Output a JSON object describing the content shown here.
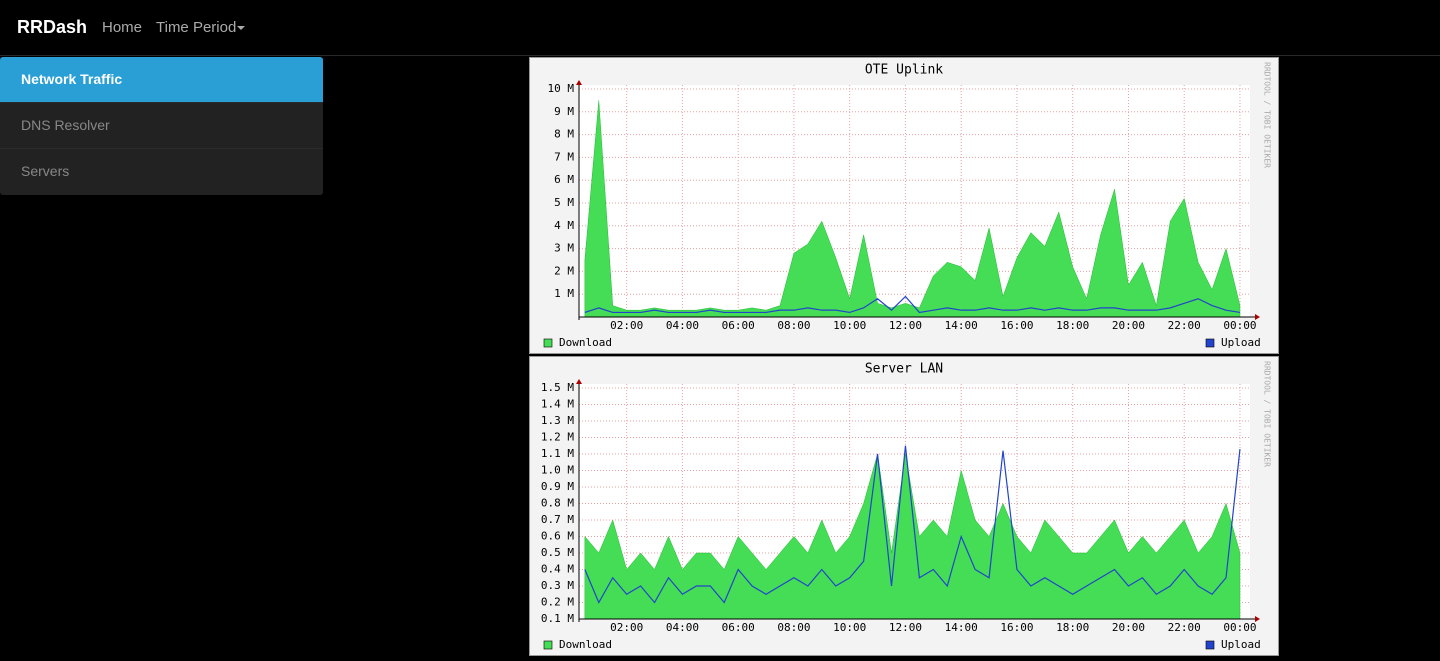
{
  "navbar": {
    "brand": "RRDash",
    "links": [
      "Home",
      "Time Period"
    ]
  },
  "sidebar": {
    "items": [
      "Network Traffic",
      "DNS Resolver",
      "Servers"
    ],
    "active": 0
  },
  "chart_data": [
    {
      "type": "area",
      "title": "OTE Uplink",
      "watermark": "RRDTOOL / TOBI OETIKER",
      "grid": true,
      "xlim": [
        0.29,
        24.36
      ],
      "xticks": [
        {
          "value": 2,
          "label": "02:00"
        },
        {
          "value": 4,
          "label": "04:00"
        },
        {
          "value": 6,
          "label": "06:00"
        },
        {
          "value": 8,
          "label": "08:00"
        },
        {
          "value": 10,
          "label": "10:00"
        },
        {
          "value": 12,
          "label": "12:00"
        },
        {
          "value": 14,
          "label": "14:00"
        },
        {
          "value": 16,
          "label": "16:00"
        },
        {
          "value": 18,
          "label": "18:00"
        },
        {
          "value": 20,
          "label": "20:00"
        },
        {
          "value": 22,
          "label": "22:00"
        },
        {
          "value": 24,
          "label": "00:00"
        }
      ],
      "ylim": [
        0,
        10
      ],
      "yticks": [
        {
          "value": 1,
          "label": "1 M"
        },
        {
          "value": 2,
          "label": "2 M"
        },
        {
          "value": 3,
          "label": "3 M"
        },
        {
          "value": 4,
          "label": "4 M"
        },
        {
          "value": 5,
          "label": "5 M"
        },
        {
          "value": 6,
          "label": "6 M"
        },
        {
          "value": 7,
          "label": "7 M"
        },
        {
          "value": 8,
          "label": "8 M"
        },
        {
          "value": 9,
          "label": "9 M"
        },
        {
          "value": 10,
          "label": "10 M"
        }
      ],
      "x": [
        0.5,
        1,
        1.5,
        2,
        2.5,
        3,
        3.5,
        4,
        4.5,
        5,
        5.5,
        6,
        6.5,
        7,
        7.5,
        8,
        8.5,
        9,
        9.5,
        10,
        10.5,
        11,
        11.5,
        12,
        12.5,
        13,
        13.5,
        14,
        14.5,
        15,
        15.5,
        16,
        16.5,
        17,
        17.5,
        18,
        18.5,
        19,
        19.5,
        20,
        20.5,
        21,
        21.5,
        22,
        22.5,
        23,
        23.5,
        24
      ],
      "series": [
        {
          "name": "Download",
          "color": "#44dd55",
          "kind": "area",
          "values": [
            2.5,
            9.5,
            0.5,
            0.3,
            0.3,
            0.4,
            0.3,
            0.3,
            0.3,
            0.4,
            0.3,
            0.3,
            0.4,
            0.3,
            0.5,
            2.8,
            3.2,
            4.2,
            2.6,
            0.8,
            3.6,
            0.6,
            0.4,
            0.6,
            0.4,
            1.8,
            2.4,
            2.2,
            1.6,
            3.9,
            0.9,
            2.6,
            3.7,
            3.1,
            4.6,
            2.2,
            0.8,
            3.6,
            5.6,
            1.4,
            2.4,
            0.5,
            4.2,
            5.2,
            2.4,
            1.2,
            3.0,
            0.5
          ]
        },
        {
          "name": "Upload",
          "color": "#2244cc",
          "kind": "line",
          "values": [
            0.2,
            0.4,
            0.2,
            0.2,
            0.2,
            0.3,
            0.2,
            0.2,
            0.2,
            0.3,
            0.2,
            0.2,
            0.2,
            0.2,
            0.3,
            0.3,
            0.4,
            0.3,
            0.3,
            0.2,
            0.4,
            0.8,
            0.3,
            0.9,
            0.2,
            0.3,
            0.4,
            0.3,
            0.3,
            0.4,
            0.3,
            0.3,
            0.4,
            0.3,
            0.4,
            0.3,
            0.3,
            0.4,
            0.4,
            0.3,
            0.3,
            0.3,
            0.4,
            0.6,
            0.8,
            0.5,
            0.3,
            0.2
          ]
        }
      ]
    },
    {
      "type": "area",
      "title": "Server LAN",
      "watermark": "RRDTOOL / TOBI OETIKER",
      "grid": true,
      "xlim": [
        0.29,
        24.36
      ],
      "xticks": [
        {
          "value": 2,
          "label": "02:00"
        },
        {
          "value": 4,
          "label": "04:00"
        },
        {
          "value": 6,
          "label": "06:00"
        },
        {
          "value": 8,
          "label": "08:00"
        },
        {
          "value": 10,
          "label": "10:00"
        },
        {
          "value": 12,
          "label": "12:00"
        },
        {
          "value": 14,
          "label": "14:00"
        },
        {
          "value": 16,
          "label": "16:00"
        },
        {
          "value": 18,
          "label": "18:00"
        },
        {
          "value": 20,
          "label": "20:00"
        },
        {
          "value": 22,
          "label": "22:00"
        },
        {
          "value": 24,
          "label": "00:00"
        }
      ],
      "ylim": [
        0.1,
        1.5
      ],
      "yticks": [
        {
          "value": 0.1,
          "label": "0.1 M"
        },
        {
          "value": 0.2,
          "label": "0.2 M"
        },
        {
          "value": 0.3,
          "label": "0.3 M"
        },
        {
          "value": 0.4,
          "label": "0.4 M"
        },
        {
          "value": 0.5,
          "label": "0.5 M"
        },
        {
          "value": 0.6,
          "label": "0.6 M"
        },
        {
          "value": 0.7,
          "label": "0.7 M"
        },
        {
          "value": 0.8,
          "label": "0.8 M"
        },
        {
          "value": 0.9,
          "label": "0.9 M"
        },
        {
          "value": 1.0,
          "label": "1.0 M"
        },
        {
          "value": 1.1,
          "label": "1.1 M"
        },
        {
          "value": 1.2,
          "label": "1.2 M"
        },
        {
          "value": 1.3,
          "label": "1.3 M"
        },
        {
          "value": 1.4,
          "label": "1.4 M"
        },
        {
          "value": 1.5,
          "label": "1.5 M"
        }
      ],
      "x": [
        0.5,
        1,
        1.5,
        2,
        2.5,
        3,
        3.5,
        4,
        4.5,
        5,
        5.5,
        6,
        6.5,
        7,
        7.5,
        8,
        8.5,
        9,
        9.5,
        10,
        10.5,
        11,
        11.5,
        12,
        12.5,
        13,
        13.5,
        14,
        14.5,
        15,
        15.5,
        16,
        16.5,
        17,
        17.5,
        18,
        18.5,
        19,
        19.5,
        20,
        20.5,
        21,
        21.5,
        22,
        22.5,
        23,
        23.5,
        24
      ],
      "series": [
        {
          "name": "Download",
          "color": "#44dd55",
          "kind": "area",
          "values": [
            0.6,
            0.5,
            0.7,
            0.4,
            0.5,
            0.4,
            0.6,
            0.4,
            0.5,
            0.5,
            0.4,
            0.6,
            0.5,
            0.4,
            0.5,
            0.6,
            0.5,
            0.7,
            0.5,
            0.6,
            0.8,
            1.1,
            0.5,
            1.1,
            0.6,
            0.7,
            0.6,
            1.0,
            0.7,
            0.6,
            0.8,
            0.6,
            0.5,
            0.7,
            0.6,
            0.5,
            0.5,
            0.6,
            0.7,
            0.5,
            0.6,
            0.5,
            0.6,
            0.7,
            0.5,
            0.6,
            0.8,
            0.5
          ]
        },
        {
          "name": "Upload",
          "color": "#2244cc",
          "kind": "line",
          "values": [
            0.4,
            0.2,
            0.35,
            0.25,
            0.3,
            0.2,
            0.35,
            0.25,
            0.3,
            0.3,
            0.2,
            0.4,
            0.3,
            0.25,
            0.3,
            0.35,
            0.3,
            0.4,
            0.3,
            0.35,
            0.45,
            1.1,
            0.3,
            1.15,
            0.35,
            0.4,
            0.3,
            0.6,
            0.4,
            0.35,
            1.12,
            0.4,
            0.3,
            0.35,
            0.3,
            0.25,
            0.3,
            0.35,
            0.4,
            0.3,
            0.35,
            0.25,
            0.3,
            0.4,
            0.3,
            0.25,
            0.35,
            1.13
          ]
        }
      ]
    }
  ]
}
